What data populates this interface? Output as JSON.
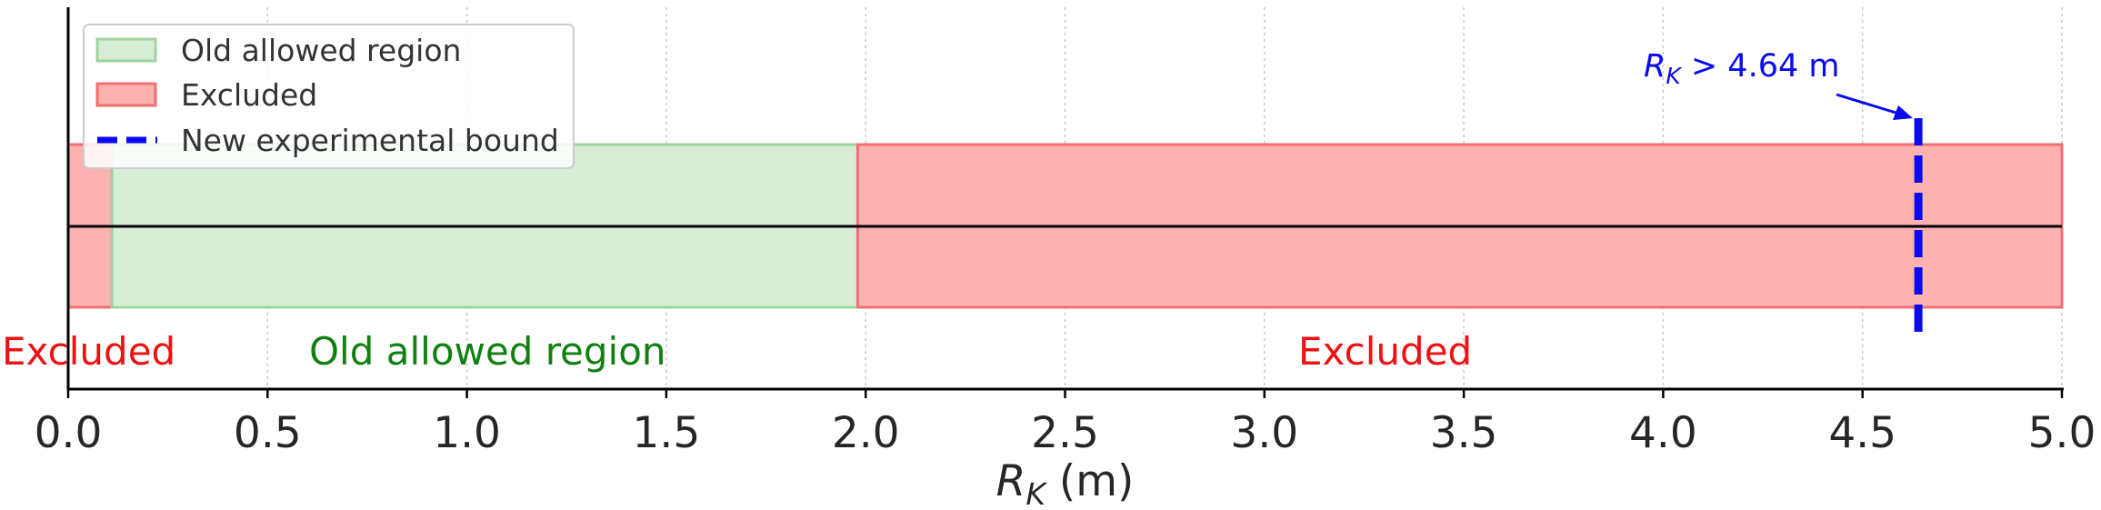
{
  "chart_data": {
    "type": "range-bar",
    "xlabel": "R_K (m)",
    "xlim": [
      0.0,
      5.0
    ],
    "xticks": [
      "0.0",
      "0.5",
      "1.0",
      "1.5",
      "2.0",
      "2.5",
      "3.0",
      "3.5",
      "4.0",
      "4.5",
      "5.0"
    ],
    "grid_x": true,
    "regions": [
      {
        "name": "Excluded",
        "start": 0.0,
        "end": 0.11,
        "color": "#ff8a8a",
        "label_text": "Excluded",
        "label_color": "#ee1111"
      },
      {
        "name": "Old allowed region",
        "start": 0.11,
        "end": 1.98,
        "color": "#b6dcb6",
        "label_text": "Old allowed region",
        "label_color": "#118011"
      },
      {
        "name": "Excluded",
        "start": 1.98,
        "end": 5.0,
        "color": "#ff8a8a",
        "label_text": "Excluded",
        "label_color": "#ee1111"
      }
    ],
    "bound": {
      "value": 4.64,
      "annotation": "R_K > 4.64 m",
      "color": "#0a0af0"
    },
    "legend": {
      "placement": "top-left",
      "items": [
        {
          "label": "Old allowed region",
          "kind": "patch",
          "color": "#b6dcb6"
        },
        {
          "label": "Excluded",
          "kind": "patch",
          "color": "#ff8a8a"
        },
        {
          "label": "New experimental bound",
          "kind": "dashed-line",
          "color": "#0a0af0"
        }
      ]
    }
  }
}
